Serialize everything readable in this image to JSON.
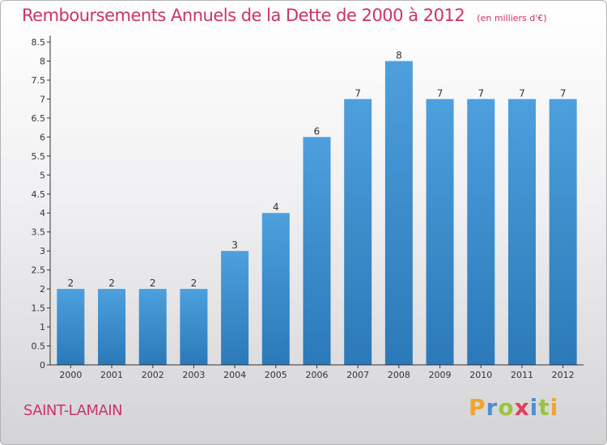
{
  "chart_data": {
    "type": "bar",
    "title": "Remboursements Annuels de la Dette de 2000 à 2012",
    "subtitle": "(en milliers d'€)",
    "categories": [
      "2000",
      "2001",
      "2002",
      "2003",
      "2004",
      "2005",
      "2006",
      "2007",
      "2008",
      "2009",
      "2010",
      "2011",
      "2012"
    ],
    "values": [
      2,
      2,
      2,
      2,
      3,
      4,
      6,
      7,
      8,
      7,
      7,
      7,
      7
    ],
    "data_labels": [
      "2",
      "2",
      "2",
      "2",
      "3",
      "4",
      "6",
      "7",
      "8",
      "7",
      "7",
      "7",
      "7"
    ],
    "ylim": [
      0,
      8.5
    ],
    "yticks": [
      "0",
      "0.5",
      "1",
      "1.5",
      "2",
      "2.5",
      "3",
      "3.5",
      "4",
      "4.5",
      "5",
      "5.5",
      "6",
      "6.5",
      "7",
      "7.5",
      "8",
      "8.5"
    ],
    "xlabel": "",
    "ylabel": "",
    "grid": false,
    "bar_color": "#4d9fdd",
    "bar_color_dark": "#2b79b8"
  },
  "footer": {
    "commune": "SAINT-LAMAIN",
    "logo_letters": [
      {
        "ch": "P",
        "color": "#f2a52e"
      },
      {
        "ch": "r",
        "color": "#4b8fd6"
      },
      {
        "ch": "o",
        "color": "#9ac43c"
      },
      {
        "ch": "x",
        "color": "#e0405a"
      },
      {
        "ch": "i",
        "color": "#4b8fd6"
      },
      {
        "ch": "t",
        "color": "#9ac43c"
      },
      {
        "ch": "i",
        "color": "#f2a52e"
      }
    ]
  },
  "colors": {
    "title": "#cc3366",
    "axis": "#333333",
    "text": "#333333"
  }
}
